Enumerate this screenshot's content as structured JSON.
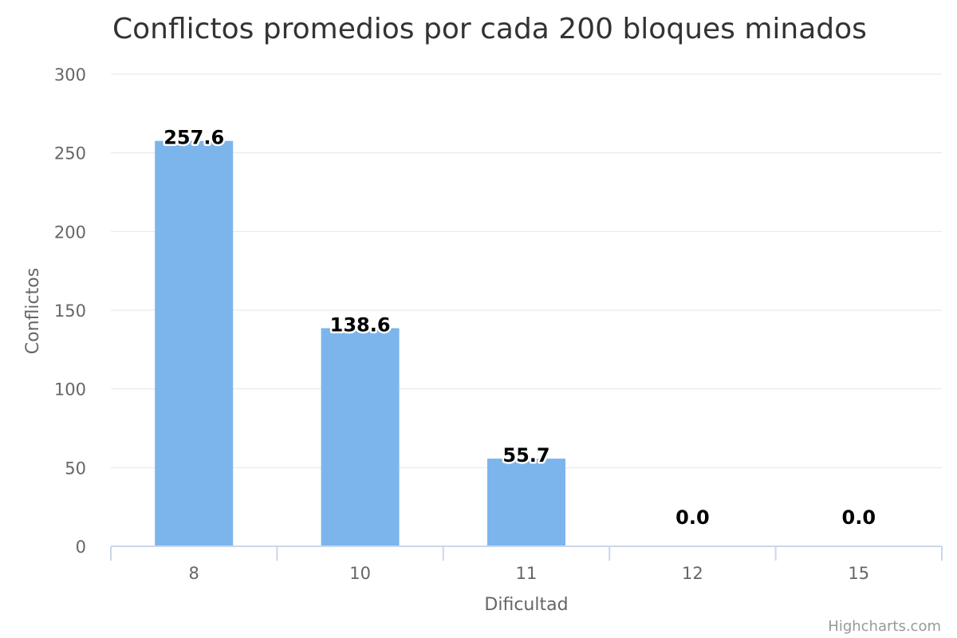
{
  "chart_data": {
    "type": "bar",
    "title": "Conflictos promedios por cada 200 bloques minados",
    "xlabel": "Dificultad",
    "ylabel": "Conflictos",
    "categories": [
      "8",
      "10",
      "11",
      "12",
      "15"
    ],
    "values": [
      257.6,
      138.6,
      55.7,
      0.0,
      0.0
    ],
    "data_labels": [
      "257.6",
      "138.6",
      "55.7",
      "0.0",
      "0.0"
    ],
    "ylim": [
      0,
      300
    ],
    "yticks": [
      0,
      50,
      100,
      150,
      200,
      250,
      300
    ],
    "grid": true,
    "legend": "none",
    "colors": {
      "bar": "#7cb5ec",
      "grid": "#e6e6e6",
      "axis": "#ccd6eb"
    }
  },
  "credits": "Highcharts.com"
}
